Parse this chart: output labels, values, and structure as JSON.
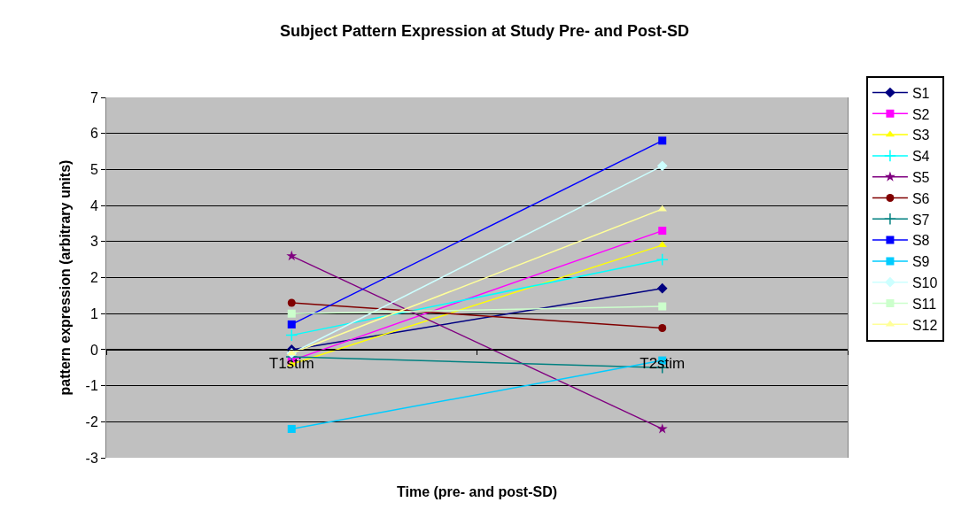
{
  "chart_data": {
    "type": "line",
    "title": "Subject Pattern Expression at Study Pre- and Post-SD",
    "xlabel": "Time (pre- and post-SD)",
    "ylabel": "pattern expression (arbitrary units)",
    "categories": [
      "T1stim",
      "T2stim"
    ],
    "ylim": [
      -3,
      7
    ],
    "yticks": [
      -3,
      -2,
      -1,
      0,
      1,
      2,
      3,
      4,
      5,
      6,
      7
    ],
    "grid": "y",
    "legend": "right",
    "line_style": "solid",
    "series": [
      {
        "name": "S1",
        "color": "#000080",
        "marker": "diamond",
        "values": [
          0,
          1.7
        ]
      },
      {
        "name": "S2",
        "color": "#ff00ff",
        "marker": "square",
        "values": [
          -0.3,
          3.3
        ]
      },
      {
        "name": "S3",
        "color": "#ffff00",
        "marker": "triangle",
        "values": [
          -0.4,
          2.9
        ]
      },
      {
        "name": "S4",
        "color": "#00ffff",
        "marker": "cross",
        "values": [
          0.4,
          2.5
        ]
      },
      {
        "name": "S5",
        "color": "#800080",
        "marker": "star",
        "values": [
          2.6,
          -2.2
        ]
      },
      {
        "name": "S6",
        "color": "#800000",
        "marker": "circle",
        "values": [
          1.3,
          0.6
        ]
      },
      {
        "name": "S7",
        "color": "#008080",
        "marker": "cross",
        "values": [
          -0.2,
          -0.5
        ]
      },
      {
        "name": "S8",
        "color": "#0000ff",
        "marker": "square",
        "values": [
          0.7,
          5.8
        ]
      },
      {
        "name": "S9",
        "color": "#00ccff",
        "marker": "square",
        "values": [
          -2.2,
          -0.3
        ]
      },
      {
        "name": "S10",
        "color": "#ccffff",
        "marker": "diamond",
        "values": [
          -0.1,
          5.1
        ]
      },
      {
        "name": "S11",
        "color": "#ccffcc",
        "marker": "square",
        "values": [
          1.0,
          1.2
        ]
      },
      {
        "name": "S12",
        "color": "#ffff99",
        "marker": "triangle",
        "values": [
          -0.1,
          3.9
        ]
      }
    ]
  }
}
